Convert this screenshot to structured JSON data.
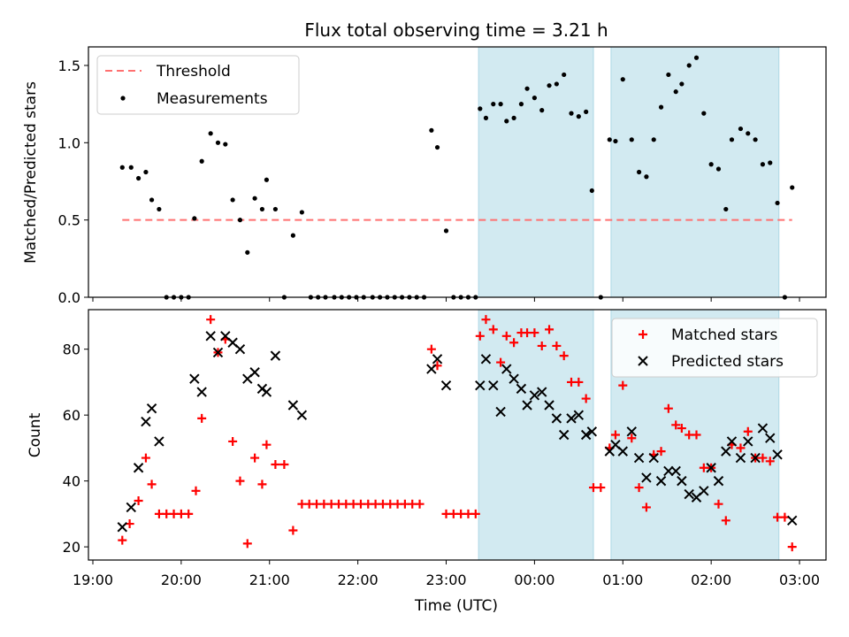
{
  "title": "Flux total observing time = 3.21 h",
  "xlabel": "Time (UTC)",
  "xticks": [
    {
      "t": 0,
      "label": "19:00"
    },
    {
      "t": 60,
      "label": "20:00"
    },
    {
      "t": 120,
      "label": "21:00"
    },
    {
      "t": 180,
      "label": "22:00"
    },
    {
      "t": 240,
      "label": "23:00"
    },
    {
      "t": 300,
      "label": "00:00"
    },
    {
      "t": 360,
      "label": "01:00"
    },
    {
      "t": 420,
      "label": "02:00"
    },
    {
      "t": 480,
      "label": "03:00"
    }
  ],
  "xlim_minutes": [
    -3,
    498
  ],
  "shaded_intervals_minutes": [
    [
      262,
      340
    ],
    [
      352,
      466
    ]
  ],
  "shade_color": "#add8e6",
  "chart_data": [
    {
      "type": "scatter",
      "ylabel": "Matched/Predicted stars",
      "ylim": [
        0,
        1.62
      ],
      "yticks": [
        0.0,
        0.5,
        1.0,
        1.5
      ],
      "legend": {
        "placement": "upper left",
        "threshold_label": "Threshold",
        "measurement_label": "Measurements"
      },
      "threshold": {
        "value": 0.5,
        "x_range": [
          20,
          475
        ],
        "color": "#ff7070"
      },
      "series": [
        {
          "name": "Measurements",
          "color": "#000000",
          "points": [
            [
              20,
              0.84
            ],
            [
              26,
              0.84
            ],
            [
              31,
              0.77
            ],
            [
              36,
              0.81
            ],
            [
              40,
              0.63
            ],
            [
              45,
              0.57
            ],
            [
              50,
              0.0
            ],
            [
              55,
              0.0
            ],
            [
              60,
              0.0
            ],
            [
              65,
              0.0
            ],
            [
              69,
              0.51
            ],
            [
              74,
              0.88
            ],
            [
              80,
              1.06
            ],
            [
              85,
              1.0
            ],
            [
              90,
              0.99
            ],
            [
              95,
              0.63
            ],
            [
              100,
              0.5
            ],
            [
              105,
              0.29
            ],
            [
              110,
              0.64
            ],
            [
              115,
              0.57
            ],
            [
              118,
              0.76
            ],
            [
              124,
              0.57
            ],
            [
              130,
              0.0
            ],
            [
              136,
              0.4
            ],
            [
              142,
              0.55
            ],
            [
              148,
              0.0
            ],
            [
              153,
              0.0
            ],
            [
              158,
              0.0
            ],
            [
              164,
              0.0
            ],
            [
              169,
              0.0
            ],
            [
              174,
              0.0
            ],
            [
              179,
              0.0
            ],
            [
              184,
              0.0
            ],
            [
              190,
              0.0
            ],
            [
              195,
              0.0
            ],
            [
              200,
              0.0
            ],
            [
              205,
              0.0
            ],
            [
              210,
              0.0
            ],
            [
              215,
              0.0
            ],
            [
              220,
              0.0
            ],
            [
              225,
              0.0
            ],
            [
              230,
              1.08
            ],
            [
              234,
              0.97
            ],
            [
              240,
              0.43
            ],
            [
              245,
              0.0
            ],
            [
              250,
              0.0
            ],
            [
              255,
              0.0
            ],
            [
              260,
              0.0
            ],
            [
              263,
              1.22
            ],
            [
              267,
              1.16
            ],
            [
              272,
              1.25
            ],
            [
              277,
              1.25
            ],
            [
              281,
              1.14
            ],
            [
              286,
              1.16
            ],
            [
              291,
              1.25
            ],
            [
              295,
              1.35
            ],
            [
              300,
              1.29
            ],
            [
              305,
              1.21
            ],
            [
              310,
              1.37
            ],
            [
              315,
              1.38
            ],
            [
              320,
              1.44
            ],
            [
              325,
              1.19
            ],
            [
              330,
              1.17
            ],
            [
              335,
              1.2
            ],
            [
              339,
              0.69
            ],
            [
              345,
              0.0
            ],
            [
              351,
              1.02
            ],
            [
              355,
              1.01
            ],
            [
              360,
              1.41
            ],
            [
              366,
              1.02
            ],
            [
              371,
              0.81
            ],
            [
              376,
              0.78
            ],
            [
              381,
              1.02
            ],
            [
              386,
              1.23
            ],
            [
              391,
              1.44
            ],
            [
              396,
              1.33
            ],
            [
              400,
              1.38
            ],
            [
              405,
              1.5
            ],
            [
              410,
              1.55
            ],
            [
              415,
              1.19
            ],
            [
              420,
              0.86
            ],
            [
              425,
              0.83
            ],
            [
              430,
              0.57
            ],
            [
              434,
              1.02
            ],
            [
              440,
              1.09
            ],
            [
              445,
              1.06
            ],
            [
              450,
              1.02
            ],
            [
              455,
              0.86
            ],
            [
              460,
              0.87
            ],
            [
              465,
              0.61
            ],
            [
              470,
              0.0
            ],
            [
              475,
              0.71
            ]
          ]
        }
      ]
    },
    {
      "type": "scatter",
      "ylabel": "Count",
      "ylim": [
        16,
        92
      ],
      "yticks": [
        20,
        40,
        60,
        80
      ],
      "legend": {
        "placement": "upper right"
      },
      "series": [
        {
          "name": "Matched stars",
          "marker": "plus",
          "color": "#ff0000",
          "points": [
            [
              20,
              22
            ],
            [
              25,
              27
            ],
            [
              31,
              34
            ],
            [
              36,
              47
            ],
            [
              40,
              39
            ],
            [
              45,
              30
            ],
            [
              50,
              30
            ],
            [
              55,
              30
            ],
            [
              60,
              30
            ],
            [
              65,
              30
            ],
            [
              70,
              37
            ],
            [
              74,
              59
            ],
            [
              80,
              89
            ],
            [
              85,
              79
            ],
            [
              90,
              83
            ],
            [
              95,
              52
            ],
            [
              100,
              40
            ],
            [
              105,
              21
            ],
            [
              110,
              47
            ],
            [
              115,
              39
            ],
            [
              118,
              51
            ],
            [
              124,
              45
            ],
            [
              130,
              45
            ],
            [
              136,
              25
            ],
            [
              142,
              33
            ],
            [
              147,
              33
            ],
            [
              152,
              33
            ],
            [
              157,
              33
            ],
            [
              162,
              33
            ],
            [
              167,
              33
            ],
            [
              172,
              33
            ],
            [
              177,
              33
            ],
            [
              182,
              33
            ],
            [
              187,
              33
            ],
            [
              192,
              33
            ],
            [
              197,
              33
            ],
            [
              202,
              33
            ],
            [
              207,
              33
            ],
            [
              212,
              33
            ],
            [
              217,
              33
            ],
            [
              222,
              33
            ],
            [
              230,
              80
            ],
            [
              234,
              75
            ],
            [
              240,
              30
            ],
            [
              245,
              30
            ],
            [
              250,
              30
            ],
            [
              255,
              30
            ],
            [
              260,
              30
            ],
            [
              263,
              84
            ],
            [
              267,
              89
            ],
            [
              272,
              86
            ],
            [
              277,
              76
            ],
            [
              281,
              84
            ],
            [
              286,
              82
            ],
            [
              291,
              85
            ],
            [
              295,
              85
            ],
            [
              300,
              85
            ],
            [
              305,
              81
            ],
            [
              310,
              86
            ],
            [
              315,
              81
            ],
            [
              320,
              78
            ],
            [
              325,
              70
            ],
            [
              330,
              70
            ],
            [
              335,
              65
            ],
            [
              340,
              38
            ],
            [
              345,
              38
            ],
            [
              351,
              50
            ],
            [
              355,
              54
            ],
            [
              360,
              69
            ],
            [
              366,
              53
            ],
            [
              371,
              38
            ],
            [
              376,
              32
            ],
            [
              381,
              48
            ],
            [
              386,
              49
            ],
            [
              391,
              62
            ],
            [
              396,
              57
            ],
            [
              400,
              56
            ],
            [
              405,
              54
            ],
            [
              410,
              54
            ],
            [
              415,
              44
            ],
            [
              420,
              44
            ],
            [
              425,
              33
            ],
            [
              430,
              28
            ],
            [
              434,
              51
            ],
            [
              440,
              50
            ],
            [
              445,
              55
            ],
            [
              450,
              47
            ],
            [
              455,
              47
            ],
            [
              460,
              46
            ],
            [
              465,
              29
            ],
            [
              470,
              29
            ],
            [
              475,
              20
            ]
          ]
        },
        {
          "name": "Predicted stars",
          "marker": "x",
          "color": "#000000",
          "points": [
            [
              20,
              26
            ],
            [
              26,
              32
            ],
            [
              31,
              44
            ],
            [
              36,
              58
            ],
            [
              40,
              62
            ],
            [
              45,
              52
            ],
            [
              69,
              71
            ],
            [
              74,
              67
            ],
            [
              80,
              84
            ],
            [
              85,
              79
            ],
            [
              90,
              84
            ],
            [
              95,
              82
            ],
            [
              100,
              80
            ],
            [
              105,
              71
            ],
            [
              110,
              73
            ],
            [
              115,
              68
            ],
            [
              118,
              67
            ],
            [
              124,
              78
            ],
            [
              136,
              63
            ],
            [
              142,
              60
            ],
            [
              230,
              74
            ],
            [
              234,
              77
            ],
            [
              240,
              69
            ],
            [
              263,
              69
            ],
            [
              267,
              77
            ],
            [
              272,
              69
            ],
            [
              277,
              61
            ],
            [
              281,
              74
            ],
            [
              286,
              71
            ],
            [
              291,
              68
            ],
            [
              295,
              63
            ],
            [
              300,
              66
            ],
            [
              305,
              67
            ],
            [
              310,
              63
            ],
            [
              315,
              59
            ],
            [
              320,
              54
            ],
            [
              325,
              59
            ],
            [
              330,
              60
            ],
            [
              335,
              54
            ],
            [
              339,
              55
            ],
            [
              351,
              49
            ],
            [
              355,
              51
            ],
            [
              360,
              49
            ],
            [
              366,
              55
            ],
            [
              371,
              47
            ],
            [
              376,
              41
            ],
            [
              381,
              47
            ],
            [
              386,
              40
            ],
            [
              391,
              43
            ],
            [
              396,
              43
            ],
            [
              400,
              40
            ],
            [
              405,
              36
            ],
            [
              410,
              35
            ],
            [
              415,
              37
            ],
            [
              420,
              44
            ],
            [
              425,
              40
            ],
            [
              430,
              49
            ],
            [
              434,
              52
            ],
            [
              440,
              47
            ],
            [
              445,
              52
            ],
            [
              450,
              47
            ],
            [
              455,
              56
            ],
            [
              460,
              53
            ],
            [
              465,
              48
            ],
            [
              475,
              28
            ]
          ]
        }
      ]
    }
  ]
}
